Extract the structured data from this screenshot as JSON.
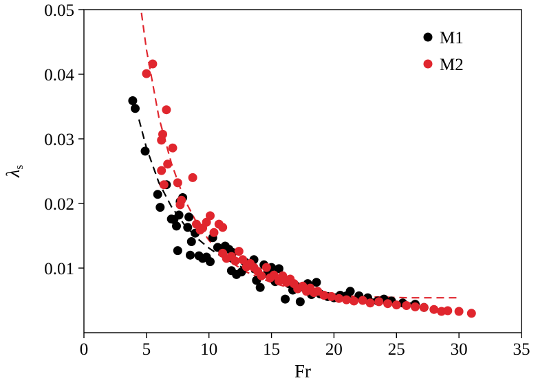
{
  "chart_data": {
    "type": "scatter",
    "title": "",
    "xlabel": "Fr",
    "ylabel": "λs",
    "ylabel_main": "λ",
    "ylabel_sub": "s",
    "xlim": [
      0,
      35
    ],
    "ylim": [
      0,
      0.05
    ],
    "xticks": [
      0,
      5,
      10,
      15,
      20,
      25,
      30,
      35
    ],
    "xtick_labels": [
      "0",
      "5",
      "10",
      "15",
      "20",
      "25",
      "30",
      "35"
    ],
    "yticks": [
      0.01,
      0.02,
      0.03,
      0.04,
      0.05
    ],
    "ytick_labels": [
      "0.01",
      "0.02",
      "0.03",
      "0.04",
      "0.05"
    ],
    "grid": false,
    "legend_position": "top-right",
    "series": [
      {
        "name": "M1",
        "color": "#000000",
        "points": [
          [
            3.9,
            0.0359
          ],
          [
            4.1,
            0.0347
          ],
          [
            4.9,
            0.0281
          ],
          [
            5.9,
            0.0214
          ],
          [
            6.1,
            0.0194
          ],
          [
            6.6,
            0.0229
          ],
          [
            7.0,
            0.0176
          ],
          [
            7.2,
            0.0175
          ],
          [
            7.4,
            0.0165
          ],
          [
            7.6,
            0.0182
          ],
          [
            7.5,
            0.0127
          ],
          [
            7.7,
            0.0203
          ],
          [
            7.9,
            0.0209
          ],
          [
            8.3,
            0.0163
          ],
          [
            8.4,
            0.0179
          ],
          [
            8.6,
            0.0141
          ],
          [
            8.5,
            0.012
          ],
          [
            8.9,
            0.0154
          ],
          [
            9.2,
            0.0119
          ],
          [
            9.5,
            0.0115
          ],
          [
            9.8,
            0.0117
          ],
          [
            10.1,
            0.011
          ],
          [
            10.3,
            0.0147
          ],
          [
            10.7,
            0.0132
          ],
          [
            11.3,
            0.0134
          ],
          [
            11.6,
            0.0129
          ],
          [
            11.9,
            0.0124
          ],
          [
            11.8,
            0.0096
          ],
          [
            12.2,
            0.009
          ],
          [
            12.6,
            0.0094
          ],
          [
            12.9,
            0.0109
          ],
          [
            13.3,
            0.0106
          ],
          [
            13.6,
            0.0113
          ],
          [
            13.8,
            0.0081
          ],
          [
            14.1,
            0.007
          ],
          [
            14.4,
            0.0105
          ],
          [
            14.7,
            0.0093
          ],
          [
            15.0,
            0.0101
          ],
          [
            15.3,
            0.0079
          ],
          [
            15.6,
            0.0099
          ],
          [
            15.9,
            0.0084
          ],
          [
            16.1,
            0.0052
          ],
          [
            16.4,
            0.0076
          ],
          [
            16.7,
            0.0066
          ],
          [
            17.0,
            0.0072
          ],
          [
            17.3,
            0.0048
          ],
          [
            17.6,
            0.007
          ],
          [
            17.9,
            0.0076
          ],
          [
            18.2,
            0.0059
          ],
          [
            18.6,
            0.0078
          ],
          [
            18.9,
            0.006
          ],
          [
            19.5,
            0.0056
          ],
          [
            20.0,
            0.0054
          ],
          [
            20.5,
            0.0058
          ],
          [
            21.0,
            0.0057
          ],
          [
            21.3,
            0.0064
          ],
          [
            22.0,
            0.0057
          ],
          [
            22.7,
            0.0054
          ],
          [
            23.5,
            0.0049
          ],
          [
            24.0,
            0.0052
          ],
          [
            24.6,
            0.0049
          ],
          [
            25.5,
            0.0046
          ],
          [
            26.5,
            0.0044
          ],
          [
            27.2,
            0.0039
          ]
        ]
      },
      {
        "name": "M2",
        "color": "#e0262e",
        "points": [
          [
            5.0,
            0.0401
          ],
          [
            5.5,
            0.0416
          ],
          [
            6.3,
            0.0307
          ],
          [
            6.2,
            0.0298
          ],
          [
            6.6,
            0.0345
          ],
          [
            6.7,
            0.0261
          ],
          [
            6.2,
            0.0251
          ],
          [
            6.4,
            0.0229
          ],
          [
            7.1,
            0.0286
          ],
          [
            7.5,
            0.0232
          ],
          [
            7.8,
            0.0205
          ],
          [
            7.7,
            0.0198
          ],
          [
            8.7,
            0.024
          ],
          [
            9.0,
            0.0168
          ],
          [
            9.3,
            0.0159
          ],
          [
            9.5,
            0.0162
          ],
          [
            9.8,
            0.0171
          ],
          [
            10.1,
            0.0181
          ],
          [
            10.4,
            0.0155
          ],
          [
            10.8,
            0.0168
          ],
          [
            11.1,
            0.0163
          ],
          [
            11.1,
            0.0123
          ],
          [
            11.4,
            0.0115
          ],
          [
            11.8,
            0.0118
          ],
          [
            12.1,
            0.0111
          ],
          [
            12.4,
            0.0126
          ],
          [
            12.7,
            0.0113
          ],
          [
            13.0,
            0.0102
          ],
          [
            13.3,
            0.0107
          ],
          [
            13.6,
            0.0101
          ],
          [
            13.9,
            0.0095
          ],
          [
            14.2,
            0.0088
          ],
          [
            14.6,
            0.0101
          ],
          [
            14.9,
            0.0085
          ],
          [
            15.2,
            0.0089
          ],
          [
            15.6,
            0.008
          ],
          [
            15.9,
            0.0088
          ],
          [
            16.2,
            0.0078
          ],
          [
            16.5,
            0.0083
          ],
          [
            16.8,
            0.0076
          ],
          [
            17.1,
            0.0068
          ],
          [
            17.5,
            0.0072
          ],
          [
            17.8,
            0.0064
          ],
          [
            18.1,
            0.0069
          ],
          [
            18.4,
            0.0062
          ],
          [
            18.7,
            0.0064
          ],
          [
            19.2,
            0.0058
          ],
          [
            19.8,
            0.0056
          ],
          [
            20.4,
            0.0053
          ],
          [
            21.0,
            0.0051
          ],
          [
            21.6,
            0.0049
          ],
          [
            22.3,
            0.005
          ],
          [
            22.9,
            0.0046
          ],
          [
            23.6,
            0.0048
          ],
          [
            24.3,
            0.0045
          ],
          [
            25.0,
            0.0043
          ],
          [
            25.8,
            0.0042
          ],
          [
            26.5,
            0.004
          ],
          [
            27.2,
            0.0039
          ],
          [
            28.0,
            0.0036
          ],
          [
            28.6,
            0.0033
          ],
          [
            29.1,
            0.0034
          ],
          [
            30.0,
            0.0033
          ],
          [
            31.0,
            0.003
          ]
        ]
      }
    ],
    "fit_lines": [
      {
        "series": "M1",
        "color": "#000000",
        "style": "dashed",
        "points": [
          [
            4.4,
            0.033
          ],
          [
            5,
            0.0286
          ],
          [
            6,
            0.0232
          ],
          [
            7,
            0.0195
          ],
          [
            8,
            0.0168
          ],
          [
            9,
            0.0147
          ],
          [
            10,
            0.0131
          ],
          [
            11,
            0.0118
          ],
          [
            12,
            0.0107
          ],
          [
            13,
            0.0098
          ],
          [
            14,
            0.009
          ],
          [
            15,
            0.0083
          ],
          [
            16,
            0.0077
          ],
          [
            17,
            0.0072
          ],
          [
            18,
            0.0067
          ],
          [
            19,
            0.0063
          ],
          [
            20,
            0.006
          ],
          [
            21,
            0.0057
          ],
          [
            22,
            0.0054
          ],
          [
            23,
            0.0052
          ],
          [
            24,
            0.005
          ],
          [
            25,
            0.0048
          ],
          [
            26,
            0.0046
          ],
          [
            26.8,
            0.0045
          ]
        ]
      },
      {
        "series": "M2",
        "color": "#e0262e",
        "style": "dashed",
        "points": [
          [
            4.6,
            0.0495
          ],
          [
            5,
            0.0438
          ],
          [
            6,
            0.0333
          ],
          [
            7,
            0.0262
          ],
          [
            8,
            0.0208
          ],
          [
            9,
            0.0171
          ],
          [
            10,
            0.0143
          ],
          [
            11,
            0.0122
          ],
          [
            12,
            0.0106
          ],
          [
            13,
            0.0094
          ],
          [
            14,
            0.0085
          ],
          [
            15,
            0.0078
          ],
          [
            16,
            0.0072
          ],
          [
            17,
            0.0067
          ],
          [
            18,
            0.0063
          ],
          [
            19,
            0.006
          ],
          [
            20,
            0.0058
          ],
          [
            21,
            0.0057
          ],
          [
            22,
            0.0056
          ],
          [
            24,
            0.0055
          ],
          [
            26,
            0.0054
          ],
          [
            28,
            0.0054
          ],
          [
            30,
            0.0054
          ]
        ]
      }
    ]
  }
}
